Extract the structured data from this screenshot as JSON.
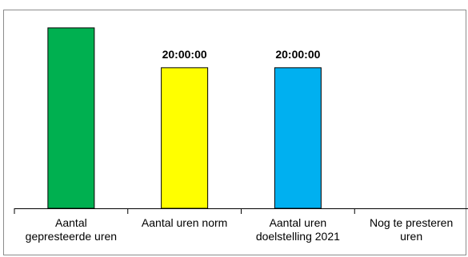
{
  "chart_data": {
    "type": "bar",
    "categories": [
      [
        "Aantal",
        "gepresteerde uren"
      ],
      [
        "Aantal uren norm"
      ],
      [
        "Aantal uren",
        "doelstelling 2021"
      ],
      [
        "Nog te presteren",
        "uren"
      ]
    ],
    "values": [
      25.67,
      20,
      20,
      0
    ],
    "data_labels": [
      "",
      "20:00:00",
      "20:00:00",
      ""
    ],
    "colors": [
      "#00b050",
      "#ffff00",
      "#00b0f0",
      "#ffffff"
    ],
    "ylim": [
      0,
      26
    ],
    "grid": false,
    "legend": "none",
    "title": "",
    "xlabel": "",
    "ylabel": ""
  }
}
